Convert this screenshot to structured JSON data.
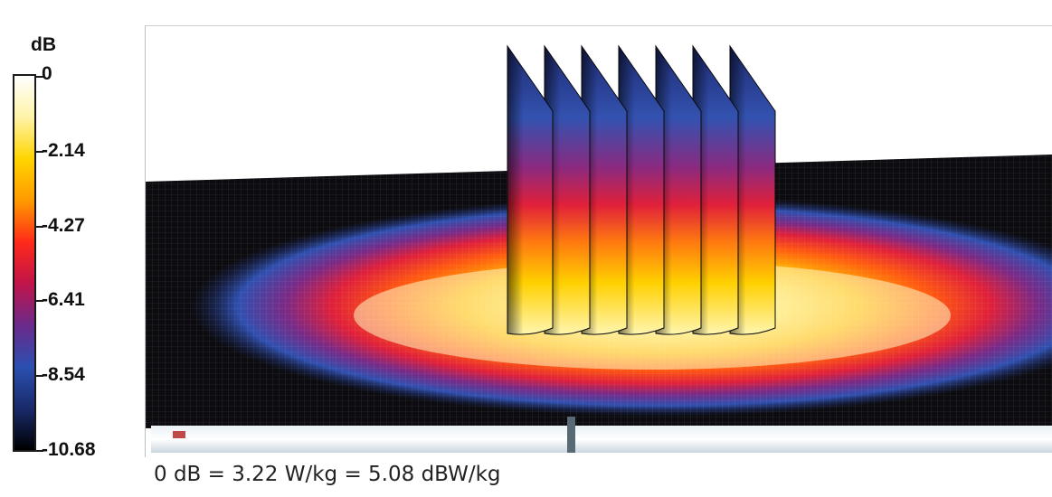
{
  "chart_data": {
    "type": "heatmap",
    "title": "",
    "colorbar": {
      "unit": "dB",
      "ticks": [
        "0",
        "-2.14",
        "-4.27",
        "-6.41",
        "-8.54",
        "-10.68"
      ],
      "range": [
        -10.68,
        0
      ],
      "placement": "left",
      "colors": [
        "#ffffff",
        "#fff3a8",
        "#ffd400",
        "#ff9a00",
        "#ff2a1a",
        "#c0144a",
        "#6a2a8a",
        "#2b4fb0",
        "#1a2a6a",
        "#000000"
      ]
    },
    "caption": "0 dB = 3.22 W/kg = 5.08 dBW/kg",
    "surface_peak_db": 0,
    "vertical_slice_count": 7,
    "grid": true
  }
}
